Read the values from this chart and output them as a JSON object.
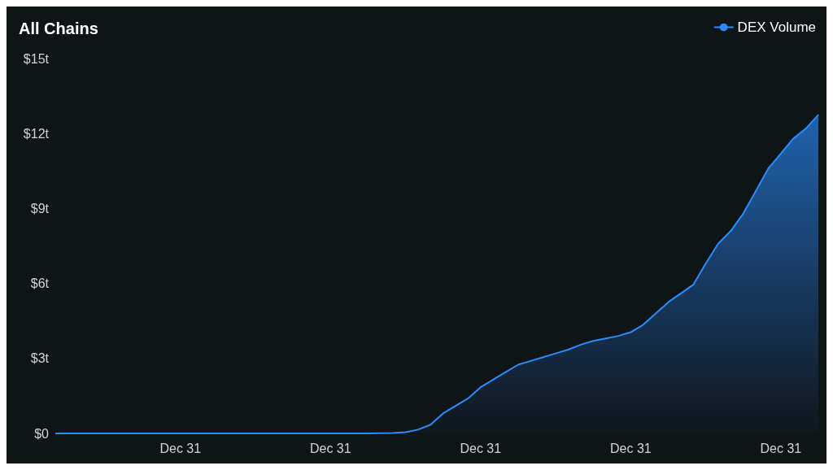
{
  "chart_data": {
    "type": "area",
    "title": "All Chains",
    "categories": [
      null,
      null,
      null,
      null,
      null,
      null,
      null,
      null,
      null,
      null,
      "Dec 31",
      null,
      null,
      null,
      null,
      null,
      null,
      null,
      null,
      null,
      null,
      null,
      "Dec 31",
      null,
      null,
      null,
      null,
      null,
      null,
      null,
      null,
      null,
      null,
      null,
      "Dec 31",
      null,
      null,
      null,
      null,
      null,
      null,
      null,
      null,
      null,
      null,
      null,
      "Dec 31",
      null,
      null,
      null,
      null,
      null,
      null,
      null,
      null,
      null,
      null,
      null,
      "Dec 31",
      null,
      null,
      null
    ],
    "series": [
      {
        "name": "DEX Volume",
        "color": "#2a8cff",
        "values": [
          0,
          0,
          0,
          0,
          0,
          0,
          0,
          0,
          0,
          0,
          0,
          0,
          0,
          0,
          0,
          0,
          0,
          0,
          0,
          0,
          0,
          0,
          0,
          0,
          0,
          0,
          0.01,
          0.02,
          0.05,
          0.15,
          0.35,
          0.8,
          1.1,
          1.4,
          1.85,
          2.15,
          2.45,
          2.75,
          2.9,
          3.05,
          3.2,
          3.35,
          3.55,
          3.7,
          3.8,
          3.9,
          4.05,
          4.35,
          4.8,
          5.25,
          5.6,
          5.95,
          6.8,
          7.6,
          8.1,
          8.8,
          9.7,
          10.6,
          11.2,
          11.8,
          12.2,
          12.75
        ]
      }
    ],
    "ylim": [
      0,
      15
    ],
    "yticks": [
      {
        "value": 0,
        "label": "$0"
      },
      {
        "value": 3,
        "label": "$3t"
      },
      {
        "value": 6,
        "label": "$6t"
      },
      {
        "value": 9,
        "label": "$9t"
      },
      {
        "value": 12,
        "label": "$12t"
      },
      {
        "value": 15,
        "label": "$15t"
      }
    ],
    "legend": "top right"
  }
}
